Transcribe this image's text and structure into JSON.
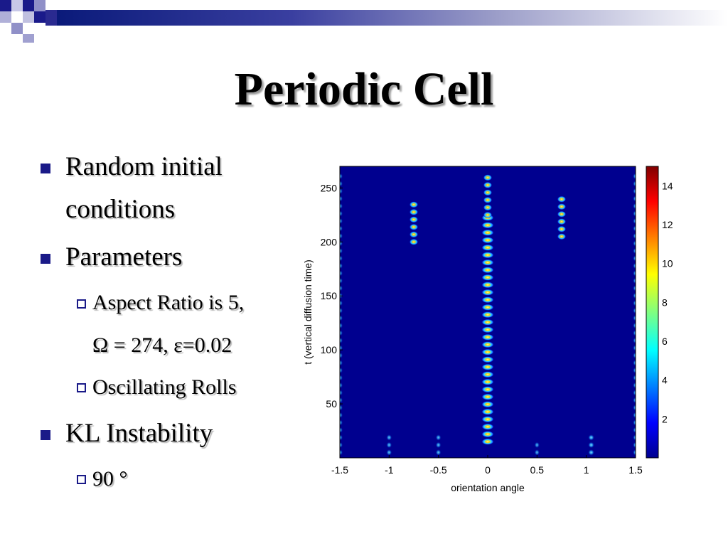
{
  "slide": {
    "title": "Periodic Cell",
    "bullets": [
      {
        "text_lines": [
          "Random initial",
          "conditions"
        ]
      },
      {
        "text_lines": [
          "Parameters"
        ]
      },
      {
        "text_lines": [
          "KL Instability"
        ]
      }
    ],
    "sub_bullets": [
      {
        "lines": [
          "Aspect Ratio is 5,",
          "Ω = 274, ε=0.02"
        ]
      },
      {
        "lines": [
          "Oscillating Rolls"
        ]
      },
      {
        "lines": [
          "90 °"
        ]
      }
    ]
  },
  "chart_data": {
    "type": "heatmap",
    "xlabel": "orientation angle",
    "ylabel": "t (vertical diffusion time)",
    "xlim": [
      -1.5,
      1.5
    ],
    "ylim": [
      0,
      270
    ],
    "x_ticks": [
      "-1.5",
      "-1",
      "-0.5",
      "0",
      "0.5",
      "1",
      "1.5"
    ],
    "y_ticks": [
      "50",
      "100",
      "150",
      "200",
      "250"
    ],
    "colorbar": {
      "range": [
        0,
        15
      ],
      "ticks": [
        "2",
        "4",
        "6",
        "8",
        "10",
        "12",
        "14"
      ],
      "colormap": "jet"
    },
    "background_color": "#00008f",
    "streaks": [
      {
        "angle": 0,
        "t_start": 15,
        "t_end": 225,
        "intensity": 0.95
      },
      {
        "angle": 0,
        "t_start": 225,
        "t_end": 265,
        "intensity": 0.6
      },
      {
        "angle": -1.5,
        "t_start": 5,
        "t_end": 265,
        "intensity": 0.45
      },
      {
        "angle": 1.5,
        "t_start": 5,
        "t_end": 265,
        "intensity": 0.4
      },
      {
        "angle": -0.75,
        "t_start": 200,
        "t_end": 240,
        "intensity": 0.6
      },
      {
        "angle": 0.75,
        "t_start": 205,
        "t_end": 240,
        "intensity": 0.6
      },
      {
        "angle": 1.05,
        "t_start": 5,
        "t_end": 25,
        "intensity": 0.5
      },
      {
        "angle": -0.5,
        "t_start": 5,
        "t_end": 22,
        "intensity": 0.4
      },
      {
        "angle": -1.0,
        "t_start": 5,
        "t_end": 20,
        "intensity": 0.4
      },
      {
        "angle": 0.5,
        "t_start": 5,
        "t_end": 15,
        "intensity": 0.35
      }
    ]
  }
}
